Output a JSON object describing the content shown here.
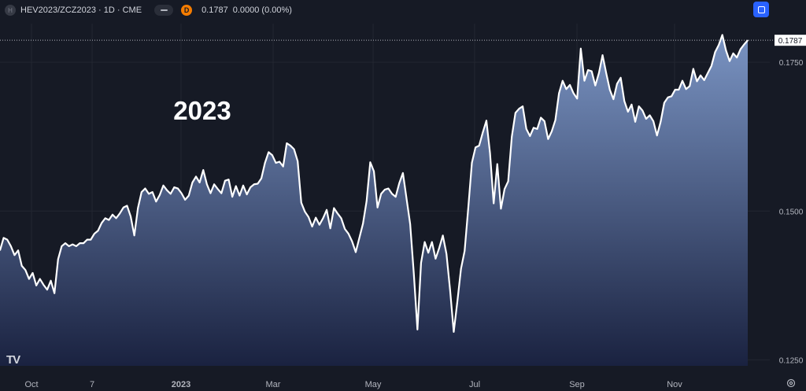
{
  "header": {
    "symbol_icon": "H",
    "title": "HEV2023/ZCZ2023 · 1D · CME",
    "delayed_badge": "D",
    "last": "0.1787",
    "change": "0.0000 (0.00%)",
    "pill_icon": "minus-pill-icon"
  },
  "toolbar": {
    "fullscreen_icon": "fullscreen-icon",
    "settings_icon": "settings-gear-icon"
  },
  "logo": {
    "text": "TV"
  },
  "colors": {
    "background": "#161a25",
    "line": "#ffffff",
    "area_top": "#7a94c3",
    "area_bottom": "#1a2240",
    "grid": "#222631",
    "axis_text": "#b2b5be",
    "price_label_bg": "#ffffff",
    "delayed": "#f57c00",
    "accent": "#2962ff"
  },
  "chart_data": {
    "type": "area",
    "annotation": "2023",
    "last_price_label": "0.1787",
    "x_ticks": [
      "Oct",
      "7",
      "2023",
      "Mar",
      "May",
      "Jul",
      "Sep",
      "Nov"
    ],
    "y_ticks": [
      "0.1750",
      "0.1500",
      "0.1250"
    ],
    "ylim": [
      0.124,
      0.1815
    ],
    "grid": true,
    "series": [
      {
        "values": [
          0.1434,
          0.1455,
          0.1452,
          0.1441,
          0.1426,
          0.1434,
          0.1408,
          0.1401,
          0.1386,
          0.1396,
          0.1375,
          0.1386,
          0.1376,
          0.1368,
          0.1383,
          0.1362,
          0.1419,
          0.1441,
          0.1446,
          0.1441,
          0.1444,
          0.1441,
          0.1446,
          0.1446,
          0.1452,
          0.1452,
          0.1462,
          0.1467,
          0.148,
          0.1488,
          0.1485,
          0.1494,
          0.1488,
          0.1496,
          0.1506,
          0.1509,
          0.1491,
          0.1459,
          0.1505,
          0.1532,
          0.1538,
          0.1529,
          0.1532,
          0.1516,
          0.1527,
          0.1543,
          0.1535,
          0.1529,
          0.154,
          0.1538,
          0.153,
          0.1519,
          0.1526,
          0.1548,
          0.1558,
          0.1548,
          0.1569,
          0.1545,
          0.153,
          0.1545,
          0.1537,
          0.153,
          0.1551,
          0.1553,
          0.1524,
          0.1542,
          0.1526,
          0.1543,
          0.1528,
          0.154,
          0.1545,
          0.1546,
          0.1555,
          0.1581,
          0.1599,
          0.1594,
          0.1581,
          0.1583,
          0.1575,
          0.1614,
          0.161,
          0.1604,
          0.1584,
          0.1514,
          0.1499,
          0.149,
          0.1474,
          0.1489,
          0.1477,
          0.1488,
          0.1502,
          0.1471,
          0.1505,
          0.1496,
          0.1488,
          0.147,
          0.1462,
          0.1449,
          0.1431,
          0.1455,
          0.1479,
          0.1517,
          0.1582,
          0.1567,
          0.1506,
          0.1529,
          0.1536,
          0.1538,
          0.1529,
          0.1524,
          0.1547,
          0.1564,
          0.1521,
          0.1478,
          0.1395,
          0.1301,
          0.1413,
          0.1448,
          0.143,
          0.1448,
          0.142,
          0.1438,
          0.1459,
          0.1428,
          0.1367,
          0.1297,
          0.1348,
          0.1403,
          0.1433,
          0.1505,
          0.1581,
          0.1607,
          0.161,
          0.1632,
          0.1652,
          0.1597,
          0.1513,
          0.1579,
          0.1504,
          0.1537,
          0.155,
          0.1625,
          0.1665,
          0.1672,
          0.1676,
          0.1638,
          0.1626,
          0.164,
          0.1638,
          0.1657,
          0.1651,
          0.1621,
          0.1634,
          0.1653,
          0.1698,
          0.1719,
          0.1705,
          0.1712,
          0.1698,
          0.1689,
          0.1773,
          0.1719,
          0.1737,
          0.1735,
          0.1711,
          0.1732,
          0.1762,
          0.1732,
          0.1704,
          0.1688,
          0.1714,
          0.1724,
          0.1685,
          0.1667,
          0.1679,
          0.165,
          0.1676,
          0.1669,
          0.1655,
          0.1661,
          0.1651,
          0.1627,
          0.165,
          0.1682,
          0.1691,
          0.1693,
          0.1704,
          0.1704,
          0.1719,
          0.1705,
          0.171,
          0.1739,
          0.1718,
          0.1728,
          0.172,
          0.1732,
          0.1744,
          0.1767,
          0.1779,
          0.1796,
          0.177,
          0.1752,
          0.1765,
          0.1758,
          0.1772,
          0.178,
          0.1787
        ]
      }
    ]
  }
}
